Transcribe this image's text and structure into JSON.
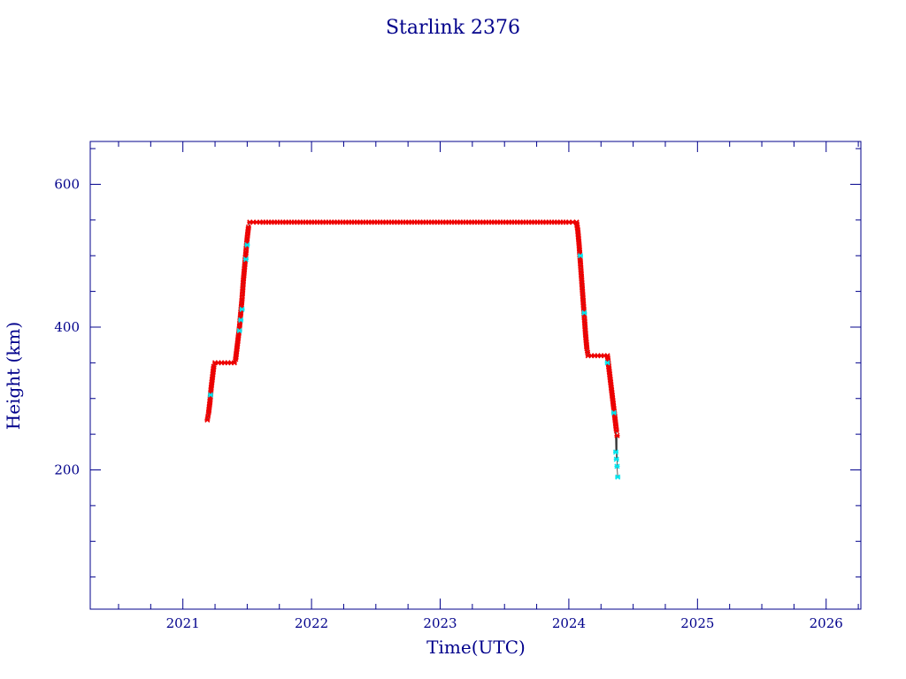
{
  "chart_data": {
    "type": "scatter",
    "title": "Starlink 2376",
    "xlabel": "Time(UTC)",
    "ylabel": "Height (km)",
    "xlim": [
      2020.28,
      2026.27
    ],
    "ylim": [
      5,
      660
    ],
    "x_ticks": [
      2021,
      2022,
      2023,
      2024,
      2025,
      2026
    ],
    "y_ticks": [
      200,
      400,
      600
    ],
    "grid": false,
    "legend": "none",
    "colors": {
      "axis": "#00008b",
      "text": "#00008b",
      "primary_marker": "#ee0000",
      "secondary_marker": "#00e5ee",
      "line": "#333333"
    },
    "series": [
      {
        "color": "#ee0000",
        "points": [
          [
            2021.19,
            270
          ],
          [
            2021.2,
            280
          ],
          [
            2021.21,
            295
          ],
          [
            2021.22,
            315
          ],
          [
            2021.23,
            330
          ],
          [
            2021.24,
            345
          ],
          [
            2021.25,
            350
          ],
          [
            2021.3,
            350
          ],
          [
            2021.35,
            350
          ],
          [
            2021.4,
            350
          ],
          [
            2021.41,
            355
          ],
          [
            2021.42,
            370
          ],
          [
            2021.43,
            385
          ],
          [
            2021.44,
            400
          ],
          [
            2021.45,
            420
          ],
          [
            2021.46,
            440
          ],
          [
            2021.47,
            465
          ],
          [
            2021.48,
            485
          ],
          [
            2021.49,
            505
          ],
          [
            2021.5,
            525
          ],
          [
            2021.51,
            540
          ],
          [
            2021.52,
            547
          ],
          [
            2021.6,
            547
          ],
          [
            2021.8,
            547
          ],
          [
            2022.0,
            547
          ],
          [
            2022.2,
            547
          ],
          [
            2022.4,
            547
          ],
          [
            2022.6,
            547
          ],
          [
            2022.8,
            547
          ],
          [
            2023.0,
            547
          ],
          [
            2023.2,
            547
          ],
          [
            2023.4,
            547
          ],
          [
            2023.6,
            547
          ],
          [
            2023.8,
            547
          ],
          [
            2024.0,
            547
          ],
          [
            2024.06,
            547
          ],
          [
            2024.07,
            535
          ],
          [
            2024.08,
            515
          ],
          [
            2024.09,
            490
          ],
          [
            2024.1,
            465
          ],
          [
            2024.11,
            440
          ],
          [
            2024.12,
            415
          ],
          [
            2024.13,
            390
          ],
          [
            2024.14,
            370
          ],
          [
            2024.15,
            360
          ],
          [
            2024.2,
            360
          ],
          [
            2024.25,
            360
          ],
          [
            2024.3,
            360
          ],
          [
            2024.31,
            345
          ],
          [
            2024.32,
            330
          ],
          [
            2024.33,
            315
          ],
          [
            2024.34,
            300
          ],
          [
            2024.35,
            285
          ],
          [
            2024.36,
            270
          ],
          [
            2024.37,
            255
          ],
          [
            2024.375,
            248
          ]
        ]
      },
      {
        "color": "#00e5ee",
        "points": [
          [
            2021.215,
            305
          ],
          [
            2021.44,
            395
          ],
          [
            2021.45,
            410
          ],
          [
            2021.46,
            425
          ],
          [
            2021.49,
            495
          ],
          [
            2021.5,
            515
          ],
          [
            2024.09,
            500
          ],
          [
            2024.12,
            420
          ],
          [
            2024.3,
            350
          ],
          [
            2024.35,
            280
          ],
          [
            2024.365,
            225
          ],
          [
            2024.37,
            215
          ],
          [
            2024.375,
            205
          ],
          [
            2024.38,
            190
          ]
        ]
      }
    ]
  }
}
